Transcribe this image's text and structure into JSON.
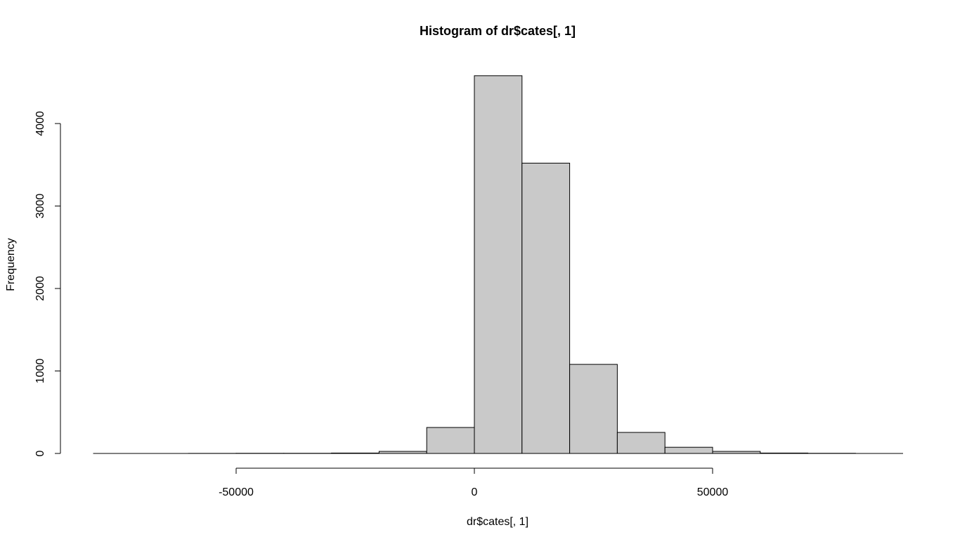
{
  "chart_data": {
    "type": "bar",
    "title": "Histogram of dr$cates[, 1]",
    "xlabel": "dr$cates[, 1]",
    "ylabel": "Frequency",
    "bin_width": 10000,
    "bins": [
      {
        "start": -80000,
        "end": -70000,
        "count": 0
      },
      {
        "start": -70000,
        "end": -60000,
        "count": 0
      },
      {
        "start": -60000,
        "end": -50000,
        "count": 1
      },
      {
        "start": -50000,
        "end": -40000,
        "count": 2
      },
      {
        "start": -40000,
        "end": -30000,
        "count": 2
      },
      {
        "start": -30000,
        "end": -20000,
        "count": 5
      },
      {
        "start": -20000,
        "end": -10000,
        "count": 25
      },
      {
        "start": -10000,
        "end": 0,
        "count": 315
      },
      {
        "start": 0,
        "end": 10000,
        "count": 4580
      },
      {
        "start": 10000,
        "end": 20000,
        "count": 3520
      },
      {
        "start": 20000,
        "end": 30000,
        "count": 1080
      },
      {
        "start": 30000,
        "end": 40000,
        "count": 255
      },
      {
        "start": 40000,
        "end": 50000,
        "count": 75
      },
      {
        "start": 50000,
        "end": 60000,
        "count": 25
      },
      {
        "start": 60000,
        "end": 70000,
        "count": 5
      },
      {
        "start": 70000,
        "end": 80000,
        "count": 2
      }
    ],
    "xlim": [
      -80000,
      90000
    ],
    "ylim": [
      0,
      4580
    ],
    "x_ticks": [
      -50000,
      0,
      50000
    ],
    "x_tick_labels": [
      "-50000",
      "0",
      "50000"
    ],
    "y_ticks": [
      0,
      1000,
      2000,
      3000,
      4000
    ],
    "y_tick_labels": [
      "0",
      "1000",
      "2000",
      "3000",
      "4000"
    ],
    "bar_color": "#c9c9c9",
    "grid": false,
    "legend": "none"
  }
}
